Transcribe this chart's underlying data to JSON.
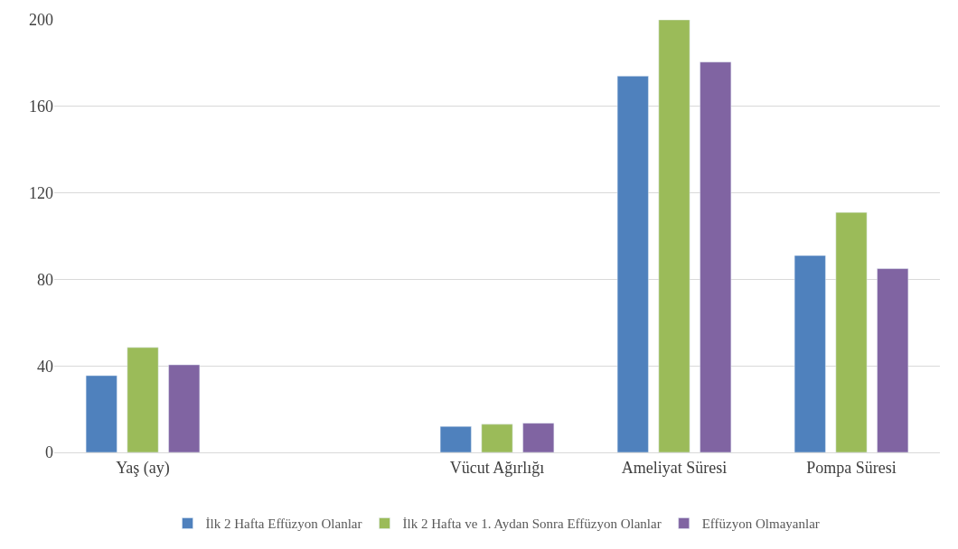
{
  "chart_data": {
    "type": "bar",
    "categories": [
      "Yaş (ay)",
      null,
      "Vücut Ağırlığı",
      "Ameliyat Süresi",
      "Pompa Süresi"
    ],
    "series": [
      {
        "name": "İlk 2 Hafta Effüzyon Olanlar",
        "color": "#4f81bd",
        "values": [
          35.5,
          null,
          12,
          174,
          91
        ]
      },
      {
        "name": "İlk 2 Hafta ve 1. Aydan Sonra Effüzyon Olanlar",
        "color": "#9bbb59",
        "values": [
          48.5,
          null,
          13,
          200,
          111
        ]
      },
      {
        "name": "Effüzyon Olmayanlar",
        "color": "#8064a2",
        "values": [
          40.5,
          null,
          13.5,
          180.5,
          85
        ]
      }
    ],
    "ylim": [
      0,
      200
    ],
    "yticks": [
      0,
      40,
      80,
      120,
      160,
      200
    ],
    "grid": "y",
    "legend": "bottom"
  }
}
